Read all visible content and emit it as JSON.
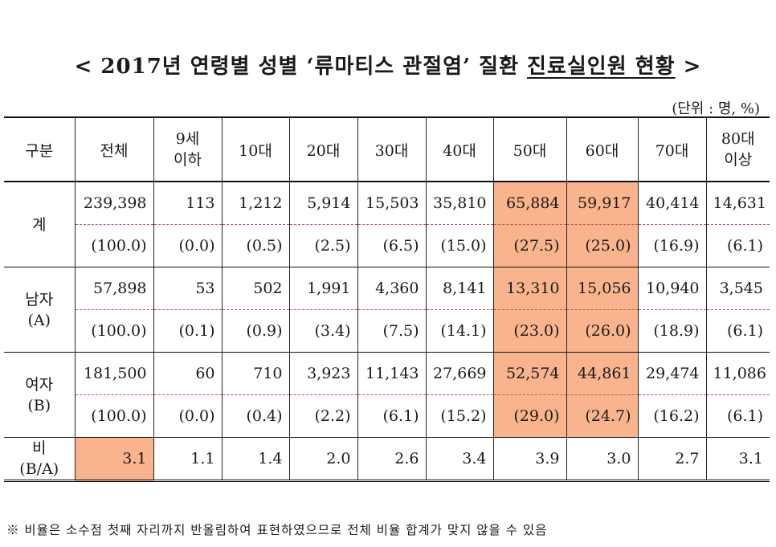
{
  "title": {
    "prefix": "< 2017년 연령별 성별 ",
    "quoted": "‘류마티스 관절염’",
    "middle": " 질환 ",
    "underlined": "진료실인원 현황",
    "suffix": " >"
  },
  "unit_note": "(단위 : 명, %)",
  "header": {
    "label": "구분",
    "columns": [
      "전체",
      "9세\n이하",
      "10대",
      "20대",
      "30대",
      "40대",
      "50대",
      "60대",
      "70대",
      "80대\n이상"
    ]
  },
  "rows": [
    {
      "label": "계",
      "counts": [
        "239,398",
        "113",
        "1,212",
        "5,914",
        "15,503",
        "35,810",
        "65,884",
        "59,917",
        "40,414",
        "14,631"
      ],
      "shares": [
        "(100.0)",
        "(0.0)",
        "(0.5)",
        "(2.5)",
        "(6.5)",
        "(15.0)",
        "(27.5)",
        "(25.0)",
        "(16.9)",
        "(6.1)"
      ]
    },
    {
      "label": "남자\n(A)",
      "counts": [
        "57,898",
        "53",
        "502",
        "1,991",
        "4,360",
        "8,141",
        "13,310",
        "15,056",
        "10,940",
        "3,545"
      ],
      "shares": [
        "(100.0)",
        "(0.1)",
        "(0.9)",
        "(3.4)",
        "(7.5)",
        "(14.1)",
        "(23.0)",
        "(26.0)",
        "(18.9)",
        "(6.1)"
      ]
    },
    {
      "label": "여자\n(B)",
      "counts": [
        "181,500",
        "60",
        "710",
        "3,923",
        "11,143",
        "27,669",
        "52,574",
        "44,861",
        "29,474",
        "11,086"
      ],
      "shares": [
        "(100.0)",
        "(0.0)",
        "(0.4)",
        "(2.2)",
        "(6.1)",
        "(15.2)",
        "(29.0)",
        "(24.7)",
        "(16.2)",
        "(6.1)"
      ]
    }
  ],
  "ratio": {
    "label": "비\n(B/A)",
    "values": [
      "3.1",
      "1.1",
      "1.4",
      "2.0",
      "2.6",
      "3.4",
      "3.9",
      "3.0",
      "2.7",
      "3.1"
    ]
  },
  "highlight_color": "#f9b48d",
  "footnote": "※ 비율은 소수점 첫째 자리까지 반올림하여 표현하였으므로 전체 비율 합계가 맞지 않을 수 있음"
}
